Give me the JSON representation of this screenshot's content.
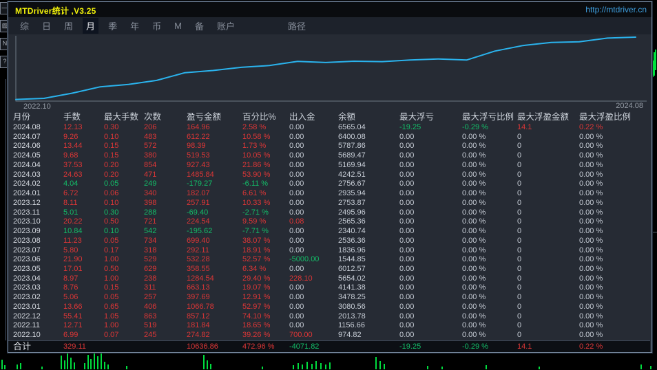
{
  "window": {
    "title": "MTDriver统计 ,V3.25",
    "url": "http://mtdriver.cn"
  },
  "menu": {
    "selected": "月",
    "items": [
      {
        "label": "综",
        "name": "menu-item-summary"
      },
      {
        "label": "日",
        "name": "menu-item-day"
      },
      {
        "label": "周",
        "name": "menu-item-week"
      },
      {
        "label": "月",
        "name": "menu-item-month"
      },
      {
        "label": "季",
        "name": "menu-item-quarter"
      },
      {
        "label": "年",
        "name": "menu-item-year"
      },
      {
        "label": "币",
        "name": "menu-item-currency"
      },
      {
        "label": "M",
        "name": "menu-item-m"
      },
      {
        "label": "备",
        "name": "menu-item-note"
      },
      {
        "label": "账户",
        "name": "menu-item-account"
      },
      {
        "label": "路径",
        "name": "menu-item-path",
        "gap_before": 58
      }
    ]
  },
  "chart_data": {
    "type": "line",
    "title": "",
    "xlabel_start": "2022.10",
    "xlabel_end": "2024.08",
    "x": [
      "2022.10",
      "2022.11",
      "2022.12",
      "2023.01",
      "2023.02",
      "2023.03",
      "2023.04",
      "2023.05",
      "2023.06",
      "2023.07",
      "2023.08",
      "2023.09",
      "2023.10",
      "2023.11",
      "2023.12",
      "2024.01",
      "2024.02",
      "2024.03",
      "2024.04",
      "2024.05",
      "2024.06",
      "2024.07",
      "2024.08"
    ],
    "series": [
      {
        "name": "cumulative-profit",
        "values": [
          274.82,
          456.66,
          1313.78,
          2380.56,
          2778.25,
          3441.38,
          4725.92,
          5084.47,
          5616.75,
          5908.86,
          6608.26,
          6412.64,
          6637.18,
          6567.78,
          6825.69,
          7007.76,
          6828.49,
          8314.33,
          9241.76,
          9761.29,
          9859.68,
          10471.9,
          10636.86
        ]
      }
    ],
    "ylim": [
      0,
      10636.86
    ],
    "grid": false,
    "legend": false,
    "line_color": "#2ab3ed"
  },
  "table": {
    "headers": [
      "月份",
      "手数",
      "最大手数",
      "次数",
      "盈亏金额",
      "百分比%",
      "出入金",
      "余额",
      "最大浮亏",
      "最大浮亏比例",
      "最大浮盈金额",
      "最大浮盈比例"
    ],
    "column_names": [
      "month",
      "lots",
      "max-lots",
      "trades",
      "profit",
      "percent",
      "deposit",
      "balance",
      "max-float-loss",
      "max-float-loss-pct",
      "max-float-profit",
      "max-float-profit-pct"
    ],
    "rows": [
      {
        "cells": [
          "2024.08",
          "12.13",
          "0.30",
          "206",
          "164.96",
          "2.58 %",
          "0.00",
          "6565.04",
          "-19.25",
          "-0.29 %",
          "14.1",
          "0.22 %"
        ]
      },
      {
        "cells": [
          "2024.07",
          "9.26",
          "0.10",
          "483",
          "612.22",
          "10.58 %",
          "0.00",
          "6400.08",
          "0.00",
          "0.00 %",
          "0",
          "0.00 %"
        ]
      },
      {
        "cells": [
          "2024.06",
          "13.44",
          "0.15",
          "572",
          "98.39",
          "1.73 %",
          "0.00",
          "5787.86",
          "0.00",
          "0.00 %",
          "0",
          "0.00 %"
        ]
      },
      {
        "cells": [
          "2024.05",
          "9.68",
          "0.15",
          "380",
          "519.53",
          "10.05 %",
          "0.00",
          "5689.47",
          "0.00",
          "0.00 %",
          "0",
          "0.00 %"
        ]
      },
      {
        "cells": [
          "2024.04",
          "37.53",
          "0.20",
          "854",
          "927.43",
          "21.86 %",
          "0.00",
          "5169.94",
          "0.00",
          "0.00 %",
          "0",
          "0.00 %"
        ]
      },
      {
        "cells": [
          "2024.03",
          "24.63",
          "0.20",
          "471",
          "1485.84",
          "53.90 %",
          "0.00",
          "4242.51",
          "0.00",
          "0.00 %",
          "0",
          "0.00 %"
        ]
      },
      {
        "cells": [
          "2024.02",
          "4.04",
          "0.05",
          "249",
          "-179.27",
          "-6.11 %",
          "0.00",
          "2756.67",
          "0.00",
          "0.00 %",
          "0",
          "0.00 %"
        ]
      },
      {
        "cells": [
          "2024.01",
          "6.72",
          "0.06",
          "340",
          "182.07",
          "6.61 %",
          "0.00",
          "2935.94",
          "0.00",
          "0.00 %",
          "0",
          "0.00 %"
        ]
      },
      {
        "cells": [
          "2023.12",
          "8.11",
          "0.10",
          "398",
          "257.91",
          "10.33 %",
          "0.00",
          "2753.87",
          "0.00",
          "0.00 %",
          "0",
          "0.00 %"
        ]
      },
      {
        "cells": [
          "2023.11",
          "5.01",
          "0.30",
          "288",
          "-69.40",
          "-2.71 %",
          "0.00",
          "2495.96",
          "0.00",
          "0.00 %",
          "0",
          "0.00 %"
        ]
      },
      {
        "cells": [
          "2023.10",
          "20.22",
          "0.50",
          "721",
          "224.54",
          "9.59 %",
          "0.08",
          "2565.36",
          "0.00",
          "0.00 %",
          "0",
          "0.00 %"
        ]
      },
      {
        "cells": [
          "2023.09",
          "10.84",
          "0.10",
          "542",
          "-195.62",
          "-7.71 %",
          "0.00",
          "2340.74",
          "0.00",
          "0.00 %",
          "0",
          "0.00 %"
        ]
      },
      {
        "cells": [
          "2023.08",
          "11.23",
          "0.05",
          "734",
          "699.40",
          "38.07 %",
          "0.00",
          "2536.36",
          "0.00",
          "0.00 %",
          "0",
          "0.00 %"
        ]
      },
      {
        "cells": [
          "2023.07",
          "5.80",
          "0.17",
          "318",
          "292.11",
          "18.91 %",
          "0.00",
          "1836.96",
          "0.00",
          "0.00 %",
          "0",
          "0.00 %"
        ]
      },
      {
        "cells": [
          "2023.06",
          "21.90",
          "1.00",
          "529",
          "532.28",
          "52.57 %",
          "-5000.00",
          "1544.85",
          "0.00",
          "0.00 %",
          "0",
          "0.00 %"
        ]
      },
      {
        "cells": [
          "2023.05",
          "17.01",
          "0.50",
          "629",
          "358.55",
          "6.34 %",
          "0.00",
          "6012.57",
          "0.00",
          "0.00 %",
          "0",
          "0.00 %"
        ]
      },
      {
        "cells": [
          "2023.04",
          "8.97",
          "1.00",
          "238",
          "1284.54",
          "29.40 %",
          "228.10",
          "5654.02",
          "0.00",
          "0.00 %",
          "0",
          "0.00 %"
        ]
      },
      {
        "cells": [
          "2023.03",
          "8.76",
          "0.15",
          "311",
          "663.13",
          "19.07 %",
          "0.00",
          "4141.38",
          "0.00",
          "0.00 %",
          "0",
          "0.00 %"
        ]
      },
      {
        "cells": [
          "2023.02",
          "5.06",
          "0.05",
          "257",
          "397.69",
          "12.91 %",
          "0.00",
          "3478.25",
          "0.00",
          "0.00 %",
          "0",
          "0.00 %"
        ]
      },
      {
        "cells": [
          "2023.01",
          "13.66",
          "0.65",
          "406",
          "1066.78",
          "52.97 %",
          "0.00",
          "3080.56",
          "0.00",
          "0.00 %",
          "0",
          "0.00 %"
        ]
      },
      {
        "cells": [
          "2022.12",
          "55.41",
          "1.05",
          "863",
          "857.12",
          "74.10 %",
          "0.00",
          "2013.78",
          "0.00",
          "0.00 %",
          "0",
          "0.00 %"
        ]
      },
      {
        "cells": [
          "2022.11",
          "12.71",
          "1.00",
          "519",
          "181.84",
          "18.65 %",
          "0.00",
          "1156.66",
          "0.00",
          "0.00 %",
          "0",
          "0.00 %"
        ]
      },
      {
        "cells": [
          "2022.10",
          "6.99",
          "0.07",
          "245",
          "274.82",
          "39.26 %",
          "700.00",
          "974.82",
          "0.00",
          "0.00 %",
          "0",
          "0.00 %"
        ]
      }
    ],
    "total": {
      "cells": [
        "合计",
        "329.11",
        "",
        "",
        "10636.86",
        "472.96 %",
        "-4071.82",
        "",
        "-19.25",
        "-0.29 %",
        "14.1",
        "0.22 %"
      ]
    }
  },
  "background": {
    "toolbar_buttons": [
      "—",
      "▨",
      "N",
      "?"
    ],
    "bottom_bars": [
      [
        2,
        14
      ],
      [
        6,
        6
      ],
      [
        24,
        7
      ],
      [
        29,
        9
      ],
      [
        60,
        4
      ],
      [
        88,
        20
      ],
      [
        93,
        13
      ],
      [
        97,
        26
      ],
      [
        102,
        17
      ],
      [
        107,
        10
      ],
      [
        122,
        9
      ],
      [
        127,
        21
      ],
      [
        131,
        15
      ],
      [
        136,
        27
      ],
      [
        141,
        19
      ],
      [
        146,
        23
      ],
      [
        151,
        11
      ],
      [
        156,
        7
      ],
      [
        183,
        5
      ],
      [
        295,
        21
      ],
      [
        300,
        13
      ],
      [
        305,
        8
      ],
      [
        380,
        4
      ],
      [
        425,
        6
      ],
      [
        432,
        9
      ],
      [
        438,
        7
      ],
      [
        445,
        11
      ],
      [
        452,
        8
      ],
      [
        458,
        12
      ],
      [
        465,
        9
      ],
      [
        472,
        7
      ],
      [
        478,
        10
      ],
      [
        545,
        18
      ],
      [
        551,
        12
      ],
      [
        557,
        8
      ],
      [
        620,
        5
      ],
      [
        641,
        4
      ],
      [
        705,
        6
      ],
      [
        782,
        4
      ],
      [
        930,
        7
      ],
      [
        944,
        5
      ]
    ],
    "right_bars": [
      [
        947,
        88,
        24
      ],
      [
        949,
        76,
        34
      ],
      [
        951,
        72,
        30
      ]
    ]
  }
}
